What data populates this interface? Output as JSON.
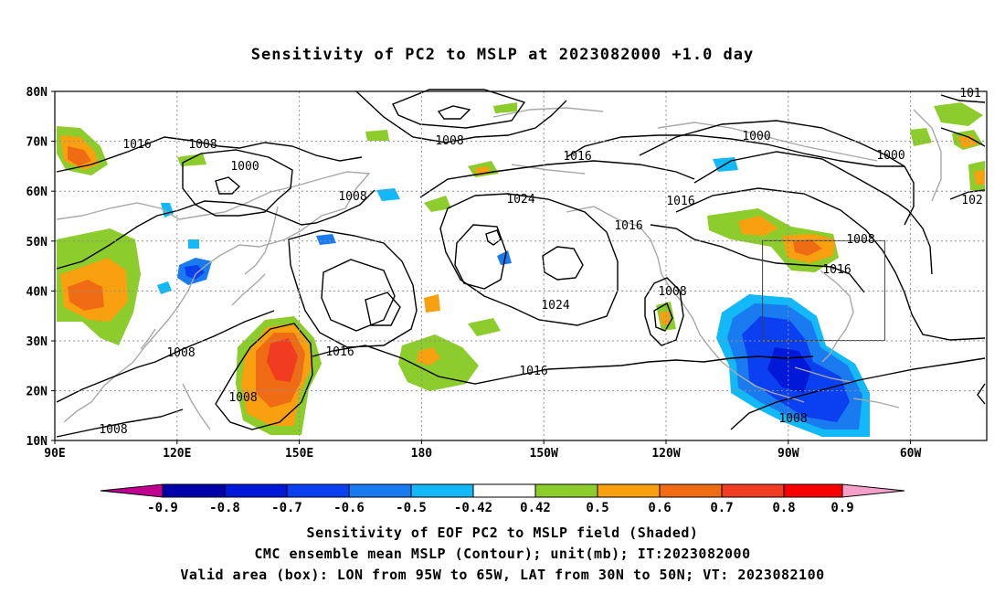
{
  "title": "Sensitivity of PC2 to MSLP at 2023082000 +1.0 day",
  "lat_labels": [
    "80N",
    "70N",
    "60N",
    "50N",
    "40N",
    "30N",
    "20N",
    "10N"
  ],
  "lon_labels": [
    "90E",
    "120E",
    "150E",
    "180",
    "150W",
    "120W",
    "90W",
    "60W"
  ],
  "contour_labels": [
    "1016",
    "1008",
    "1000",
    "1008",
    "1008",
    "1024",
    "1016",
    "1016",
    "1000",
    "1000",
    "1008",
    "1016",
    "1024",
    "1008",
    "1016",
    "1008",
    "1016",
    "1008",
    "1016",
    "1008",
    "1008",
    "101",
    "102"
  ],
  "colorbar": {
    "tick_labels": [
      "-0.9",
      "-0.8",
      "-0.7",
      "-0.6",
      "-0.5",
      "-0.42",
      "0.42",
      "0.5",
      "0.6",
      "0.7",
      "0.8",
      "0.9"
    ],
    "colors": [
      "#c00090",
      "#0000a8",
      "#0018d8",
      "#0a40f0",
      "#1a7af0",
      "#12b8f8",
      "#ffffff",
      "#8ccc2c",
      "#f8a010",
      "#f06c14",
      "#f03c20",
      "#f80000",
      "#f4a0c8"
    ]
  },
  "valid_box": {
    "lon_west": "95W",
    "lon_east": "65W",
    "lat_south": "30N",
    "lat_north": "50N"
  },
  "captions": {
    "line1": "Sensitivity of EOF PC2 to MSLP field (Shaded)",
    "line2": "CMC ensemble mean MSLP (Contour); unit(mb); IT:2023082000",
    "line3": "Valid area (box): LON from 95W to 65W, LAT from 30N to 50N; VT: 2023082100"
  }
}
